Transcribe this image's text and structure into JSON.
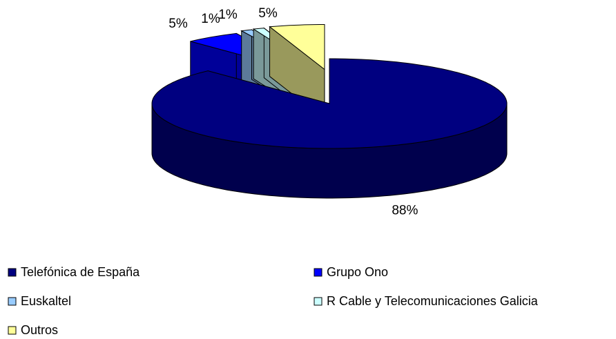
{
  "chart_data": {
    "type": "pie3d",
    "categories": [
      "Telefónica de España",
      "Grupo Ono",
      "Euskaltel",
      "R Cable y Telecomunicaciones Galicia",
      "Outros"
    ],
    "values": [
      88,
      5,
      1,
      1,
      5
    ],
    "value_labels": [
      "88%",
      "5%",
      "1%",
      "1%",
      "5%"
    ],
    "colors": [
      "#000080",
      "#0000ff",
      "#99ccff",
      "#ccffff",
      "#ffff99"
    ],
    "legend": "bottom"
  }
}
